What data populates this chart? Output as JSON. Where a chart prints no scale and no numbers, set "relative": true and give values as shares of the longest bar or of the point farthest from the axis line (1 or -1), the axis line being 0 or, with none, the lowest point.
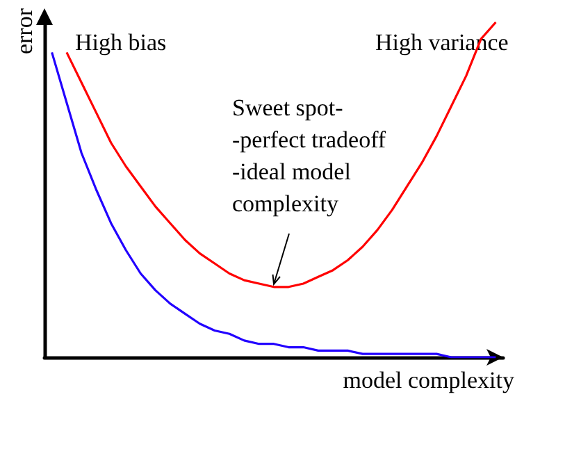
{
  "chart_data": {
    "type": "line",
    "relative": true,
    "xlabel": "model complexity",
    "ylabel": "error",
    "categories": [
      null,
      null,
      null,
      null,
      null,
      null,
      null,
      null,
      null,
      null,
      null,
      null,
      null,
      null,
      null,
      null,
      null,
      null,
      null,
      null,
      null,
      null,
      null,
      null,
      null,
      null,
      null,
      null,
      null,
      null,
      null
    ],
    "series": [
      {
        "color": "#ff0000",
        "values": [
          null,
          0.91,
          0.82,
          0.73,
          0.64,
          0.57,
          0.51,
          0.45,
          0.4,
          0.35,
          0.31,
          0.28,
          0.25,
          0.23,
          0.22,
          0.21,
          0.21,
          0.22,
          0.24,
          0.26,
          0.29,
          0.33,
          0.38,
          0.44,
          0.51,
          0.58,
          0.66,
          0.75,
          0.84,
          0.95,
          1
        ]
      },
      {
        "color": "#2200ff",
        "values": [
          0.91,
          0.76,
          0.61,
          0.5,
          0.4,
          0.32,
          0.25,
          0.2,
          0.16,
          0.13,
          0.1,
          0.08,
          0.07,
          0.05,
          0.04,
          0.04,
          0.03,
          0.03,
          0.02,
          0.02,
          0.02,
          0.01,
          0.01,
          0.01,
          0.01,
          0.01,
          0.01,
          0,
          0,
          0,
          0
        ]
      }
    ],
    "annotations": [
      "High bias",
      "High variance",
      "Sweet spot-\n-perfect tradeoff\n-ideal model\ncomplexity"
    ],
    "marker": "none",
    "grid": false
  }
}
